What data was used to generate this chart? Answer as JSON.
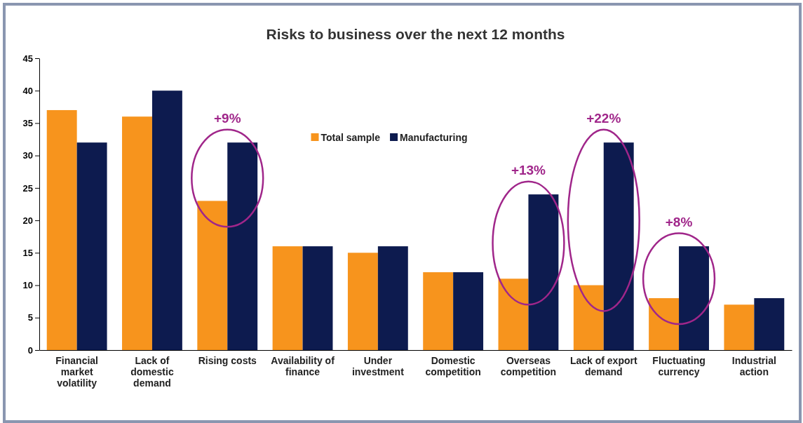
{
  "chart_data": {
    "type": "bar",
    "title": "Risks to business over the next 12 months",
    "categories": [
      "Financial market volatility",
      "Lack of domestic demand",
      "Rising costs",
      "Availability of finance",
      "Under investment",
      "Domestic competition",
      "Overseas competition",
      "Lack of export demand",
      "Fluctuating currency",
      "Industrial action"
    ],
    "series": [
      {
        "name": "Total sample",
        "color": "#f7941d",
        "values": [
          37,
          36,
          23,
          16,
          15,
          12,
          11,
          10,
          8,
          7
        ]
      },
      {
        "name": "Manufacturing",
        "color": "#0d1b4f",
        "values": [
          32,
          40,
          32,
          16,
          16,
          12,
          24,
          32,
          16,
          8
        ]
      }
    ],
    "ylim": [
      0,
      45
    ],
    "yticks": [
      0,
      5,
      10,
      15,
      20,
      25,
      30,
      35,
      40,
      45
    ],
    "grid": false,
    "legend": "top",
    "annotations": [
      {
        "text": "+9%",
        "x": "Rising costs",
        "y": 32
      },
      {
        "text": "+13%",
        "x": "Overseas competition",
        "y": 24
      },
      {
        "text": "+22%",
        "x": "Lack of export demand",
        "y": 32
      },
      {
        "text": "+8%",
        "x": "Fluctuating currency",
        "y": 16
      }
    ]
  }
}
